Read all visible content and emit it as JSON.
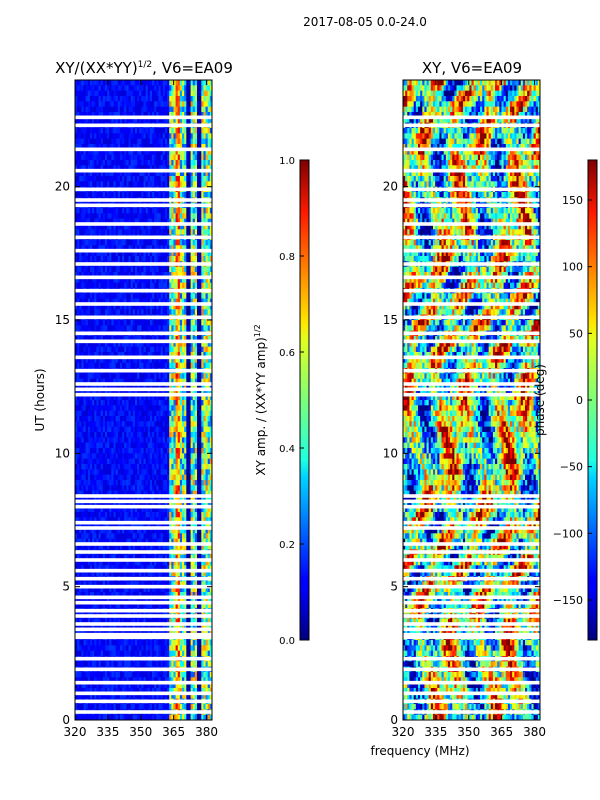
{
  "figure_title": "2017-08-05 0.0-24.0",
  "chart_data": [
    {
      "type": "heatmap",
      "title_prefix": "XY/(XX*YY)",
      "title_exp": "1/2",
      "title_suffix": ", V6=EA09",
      "xlabel": "",
      "ylabel": "UT (hours)",
      "xlim": [
        320,
        382.5
      ],
      "ylim": [
        0,
        24
      ],
      "xticks": [
        320,
        335,
        350,
        365,
        380
      ],
      "xtick_labels": [
        "320",
        "335",
        "350",
        "365",
        "380"
      ],
      "yticks": [
        0,
        5,
        10,
        15,
        20
      ],
      "ytick_labels": [
        "0",
        "5",
        "10",
        "15",
        "20"
      ],
      "colorbar": {
        "label_main": "XY amp. / (XX*YY amp)",
        "label_exp": "1/2",
        "range": [
          0.0,
          1.0
        ],
        "ticks": [
          0.0,
          0.2,
          0.4,
          0.6,
          0.8,
          1.0
        ],
        "tick_labels": [
          "0.0",
          "0.2",
          "0.4",
          "0.6",
          "0.8",
          "1.0"
        ],
        "colormap": "jet"
      },
      "flagged_ut_hours": [
        0.3,
        0.7,
        1.0,
        1.4,
        1.9,
        2.3,
        3.1,
        3.2,
        3.4,
        3.6,
        3.9,
        4.1,
        4.4,
        4.6,
        5.0,
        5.3,
        5.6,
        6.0,
        6.3,
        6.6,
        7.2,
        7.4,
        8.0,
        8.2,
        8.4,
        12.2,
        12.4,
        12.6,
        13.1,
        13.6,
        14.2,
        14.5,
        15.1,
        15.6,
        16.1,
        16.6,
        17.1,
        17.6,
        18.1,
        18.6,
        19.3,
        19.5,
        19.9,
        20.6,
        21.4,
        22.3,
        22.6
      ],
      "band_edges_mhz": [
        362.5,
        382.5
      ]
    },
    {
      "type": "heatmap",
      "title": "XY, V6=EA09",
      "xlabel": "frequency (MHz)",
      "ylabel": "",
      "xlim": [
        320,
        382.5
      ],
      "ylim": [
        0,
        24
      ],
      "xticks": [
        320,
        335,
        350,
        365,
        380
      ],
      "xtick_labels": [
        "320",
        "335",
        "350",
        "365",
        "380"
      ],
      "yticks": [
        0,
        5,
        10,
        15,
        20
      ],
      "ytick_labels": [
        "0",
        "5",
        "10",
        "15",
        "20"
      ],
      "colorbar": {
        "label": "phase (deg)",
        "range": [
          -180,
          180
        ],
        "ticks": [
          -150,
          -100,
          -50,
          0,
          50,
          100,
          150
        ],
        "tick_labels": [
          "−150",
          "−100",
          "−50",
          "0",
          "50",
          "100",
          "150"
        ],
        "colormap": "jet"
      },
      "flagged_ut_hours": [
        0.3,
        0.7,
        1.0,
        1.4,
        1.9,
        2.3,
        3.1,
        3.2,
        3.4,
        3.6,
        3.9,
        4.1,
        4.4,
        4.6,
        5.0,
        5.3,
        5.6,
        6.0,
        6.3,
        6.6,
        7.2,
        7.4,
        8.0,
        8.2,
        8.4,
        12.2,
        12.4,
        12.6,
        13.1,
        13.6,
        14.2,
        14.5,
        15.1,
        15.6,
        16.1,
        16.6,
        17.1,
        17.6,
        18.1,
        18.6,
        19.3,
        19.5,
        19.9,
        20.6,
        21.4,
        22.3,
        22.6
      ]
    }
  ]
}
